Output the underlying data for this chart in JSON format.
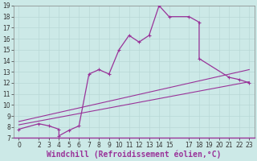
{
  "xlabel": "Windchill (Refroidissement éolien,°C)",
  "bg_color": "#cce9e7",
  "line_color": "#993399",
  "grid_color": "#b8d8d6",
  "line1_x": [
    0,
    2,
    3,
    4,
    4,
    5,
    6,
    7,
    8,
    9,
    10,
    11,
    12,
    13,
    14,
    15,
    17,
    18,
    18,
    21,
    22,
    23
  ],
  "line1_y": [
    7.8,
    8.3,
    8.1,
    7.8,
    7.2,
    7.7,
    8.1,
    12.8,
    13.2,
    12.8,
    15.0,
    16.3,
    15.7,
    16.3,
    19.0,
    18.0,
    18.0,
    17.5,
    14.2,
    12.5,
    12.3,
    12.0
  ],
  "line2_x": [
    0,
    23
  ],
  "line2_y": [
    8.5,
    13.2
  ],
  "line3_x": [
    0,
    23
  ],
  "line3_y": [
    8.2,
    12.1
  ],
  "xlim": [
    -0.5,
    23.5
  ],
  "ylim": [
    7,
    19
  ],
  "xticks": [
    0,
    2,
    3,
    4,
    5,
    6,
    7,
    8,
    9,
    10,
    11,
    12,
    13,
    14,
    15,
    17,
    18,
    19,
    20,
    21,
    22,
    23
  ],
  "yticks": [
    7,
    8,
    9,
    10,
    11,
    12,
    13,
    14,
    15,
    16,
    17,
    18,
    19
  ],
  "tick_fontsize": 5.5,
  "xlabel_fontsize": 7.0
}
